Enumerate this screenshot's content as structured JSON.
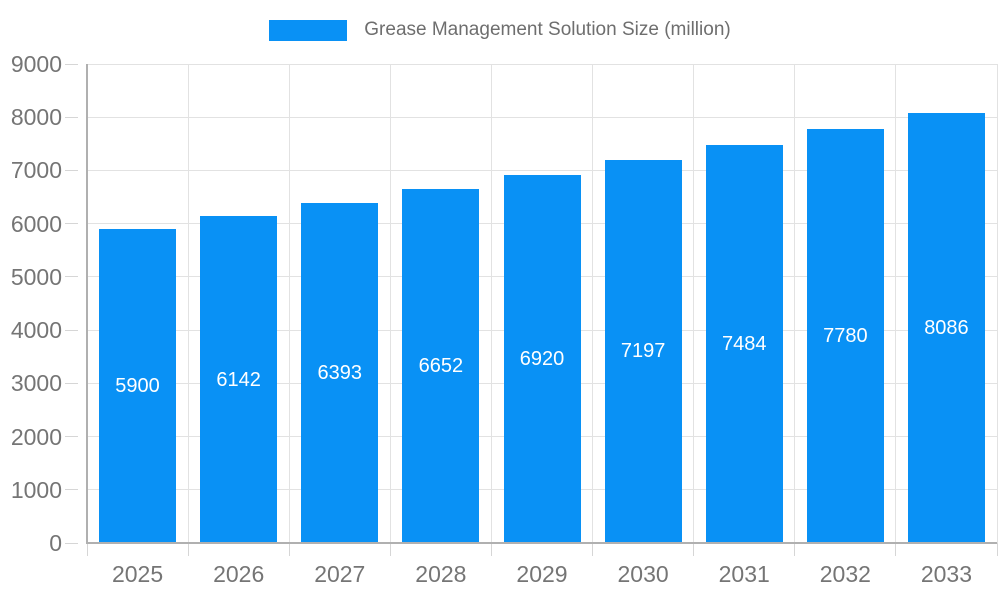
{
  "legend": {
    "label": "Grease Management Solution Size (million)"
  },
  "chart_data": {
    "type": "bar",
    "title": "",
    "categories": [
      "2025",
      "2026",
      "2027",
      "2028",
      "2029",
      "2030",
      "2031",
      "2032",
      "2033"
    ],
    "series": [
      {
        "name": "Grease Management Solution Size (million)",
        "values": [
          5900,
          6142,
          6393,
          6652,
          6920,
          7197,
          7484,
          7780,
          8086
        ]
      }
    ],
    "xlabel": "",
    "ylabel": "",
    "ylim": [
      0,
      9000
    ],
    "ytick_step": 1000,
    "grid": true,
    "legend_position": "top",
    "colors": {
      "bar": "#0991F5",
      "value_label": "#FFFFFF",
      "axis_label": "#757575",
      "legend_text": "#6E6E6E",
      "gridline": "#E2E2E2",
      "tick": "#D6D6D6",
      "axis_line": "#B0B0B0",
      "background": "#FFFFFF"
    }
  }
}
